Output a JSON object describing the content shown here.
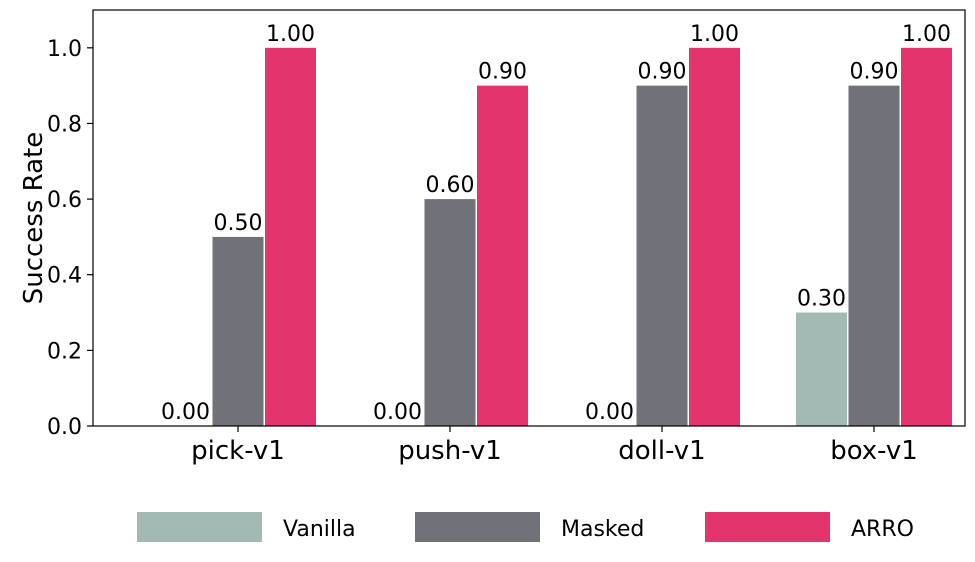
{
  "chart_data": {
    "type": "bar",
    "categories": [
      "pick-v1",
      "push-v1",
      "doll-v1",
      "box-v1"
    ],
    "series": [
      {
        "name": "Vanilla",
        "color": "#a3bab4",
        "values": [
          0.0,
          0.0,
          0.0,
          0.3
        ]
      },
      {
        "name": "Masked",
        "color": "#71717a",
        "values": [
          0.5,
          0.6,
          0.9,
          0.9
        ]
      },
      {
        "name": "ARRO",
        "color": "#e3346d",
        "values": [
          1.0,
          0.9,
          1.0,
          1.0
        ]
      }
    ],
    "data_labels": [
      [
        "0.00",
        "0.50",
        "1.00"
      ],
      [
        "0.00",
        "0.60",
        "0.90"
      ],
      [
        "0.00",
        "0.90",
        "1.00"
      ],
      [
        "0.30",
        "0.90",
        "1.00"
      ]
    ],
    "xlabel": "",
    "ylabel": "Success Rate",
    "ylim": [
      0,
      1.1
    ],
    "yticks": [
      0.0,
      0.2,
      0.4,
      0.6,
      0.8,
      1.0
    ],
    "ytick_labels": [
      "0.0",
      "0.2",
      "0.4",
      "0.6",
      "0.8",
      "1.0"
    ],
    "grid": false,
    "legend_position": "bottom"
  }
}
